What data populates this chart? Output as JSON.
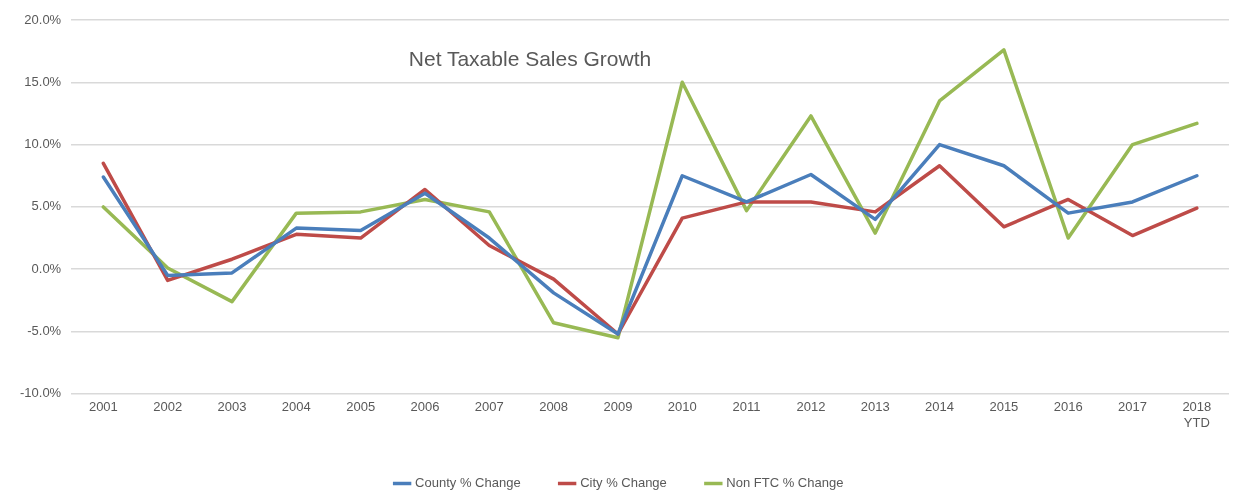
{
  "chart_data": {
    "type": "line",
    "title": "Net Taxable Sales Growth",
    "categories": [
      "2001",
      "2002",
      "2003",
      "2004",
      "2005",
      "2006",
      "2007",
      "2008",
      "2009",
      "2010",
      "2011",
      "2012",
      "2013",
      "2014",
      "2015",
      "2016",
      "2017",
      "2018\nYTD"
    ],
    "series": [
      {
        "name": "County % Change",
        "color": "#4a7ebb",
        "values": [
          7.4,
          -0.5,
          -0.3,
          3.3,
          3.1,
          6.1,
          2.5,
          -1.9,
          -5.2,
          7.5,
          5.4,
          7.6,
          4.0,
          10.0,
          8.3,
          4.5,
          5.4,
          7.5
        ]
      },
      {
        "name": "City % Change",
        "color": "#be4b48",
        "values": [
          8.5,
          -0.9,
          0.8,
          2.8,
          2.5,
          6.4,
          1.9,
          -0.8,
          -5.2,
          4.1,
          5.4,
          5.4,
          4.6,
          8.3,
          3.4,
          5.6,
          2.7,
          4.9
        ]
      },
      {
        "name": "Non FTC % Change",
        "color": "#98b954",
        "values": [
          5.0,
          0.1,
          -2.6,
          4.5,
          4.6,
          5.6,
          4.6,
          -4.3,
          -5.5,
          15.0,
          4.7,
          12.3,
          2.9,
          13.5,
          17.6,
          2.5,
          10.0,
          11.7
        ]
      }
    ],
    "ylim": [
      -10,
      20
    ],
    "yticks": [
      {
        "value": -10,
        "label": "-10.0%"
      },
      {
        "value": -5,
        "label": "-5.0%"
      },
      {
        "value": 0,
        "label": "0.0%"
      },
      {
        "value": 5,
        "label": "5.0%"
      },
      {
        "value": 10,
        "label": "10.0%"
      },
      {
        "value": 15,
        "label": "15.0%"
      },
      {
        "value": 20,
        "label": "20.0%"
      }
    ],
    "grid": "y",
    "legend": "bottom",
    "marker": "none",
    "line_style": "solid"
  }
}
